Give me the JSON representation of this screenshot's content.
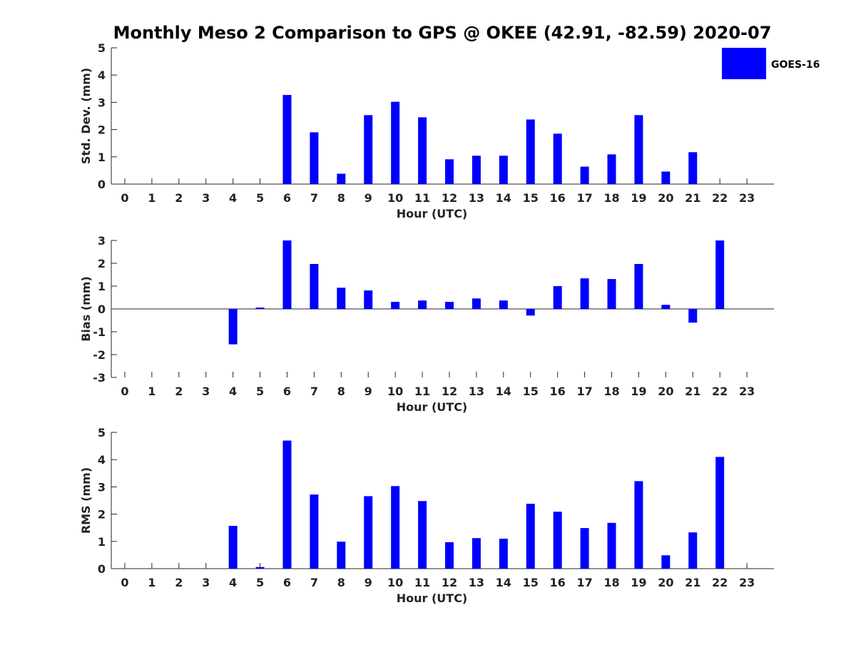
{
  "title": "Monthly Meso 2 Comparison to GPS @ OKEE (42.91, -82.59) 2020-07",
  "legend": {
    "label": "GOES-16",
    "color": "#0000ff",
    "placement": "top-right"
  },
  "chart_data": [
    {
      "type": "bar",
      "xlabel": "Hour (UTC)",
      "ylabel": "Std. Dev. (mm)",
      "ylim": [
        0,
        5
      ],
      "yticks": [
        0,
        1,
        2,
        3,
        4,
        5
      ],
      "categories": [
        "0",
        "1",
        "2",
        "3",
        "4",
        "5",
        "6",
        "7",
        "8",
        "9",
        "10",
        "11",
        "12",
        "13",
        "14",
        "15",
        "16",
        "17",
        "18",
        "19",
        "20",
        "21",
        "22",
        "23"
      ],
      "series": [
        {
          "values": [
            null,
            null,
            null,
            null,
            null,
            null,
            3.27,
            1.9,
            0.38,
            2.53,
            3.02,
            2.45,
            0.91,
            1.04,
            1.04,
            2.37,
            1.85,
            0.64,
            1.09,
            2.53,
            0.46,
            1.17,
            null,
            null
          ]
        }
      ]
    },
    {
      "type": "bar",
      "xlabel": "Hour (UTC)",
      "ylabel": "Bias (mm)",
      "ylim": [
        -3,
        3
      ],
      "yticks": [
        -3,
        -2,
        -1,
        0,
        1,
        2,
        3
      ],
      "categories": [
        "0",
        "1",
        "2",
        "3",
        "4",
        "5",
        "6",
        "7",
        "8",
        "9",
        "10",
        "11",
        "12",
        "13",
        "14",
        "15",
        "16",
        "17",
        "18",
        "19",
        "20",
        "21",
        "22",
        "23"
      ],
      "series": [
        {
          "values": [
            null,
            null,
            null,
            null,
            -1.55,
            0.06,
            3.0,
            1.97,
            0.93,
            0.81,
            0.31,
            0.37,
            0.31,
            0.46,
            0.37,
            -0.29,
            1.0,
            1.34,
            1.31,
            1.97,
            0.18,
            -0.6,
            3.0,
            null
          ]
        }
      ]
    },
    {
      "type": "bar",
      "xlabel": "Hour (UTC)",
      "ylabel": "RMS (mm)",
      "ylim": [
        0,
        5
      ],
      "yticks": [
        0,
        1,
        2,
        3,
        4,
        5
      ],
      "categories": [
        "0",
        "1",
        "2",
        "3",
        "4",
        "5",
        "6",
        "7",
        "8",
        "9",
        "10",
        "11",
        "12",
        "13",
        "14",
        "15",
        "16",
        "17",
        "18",
        "19",
        "20",
        "21",
        "22",
        "23"
      ],
      "series": [
        {
          "values": [
            null,
            null,
            null,
            null,
            1.57,
            0.06,
            4.7,
            2.72,
            0.99,
            2.66,
            3.03,
            2.48,
            0.97,
            1.12,
            1.1,
            2.38,
            2.09,
            1.49,
            1.68,
            3.21,
            0.49,
            1.33,
            4.1,
            null
          ]
        }
      ]
    }
  ]
}
